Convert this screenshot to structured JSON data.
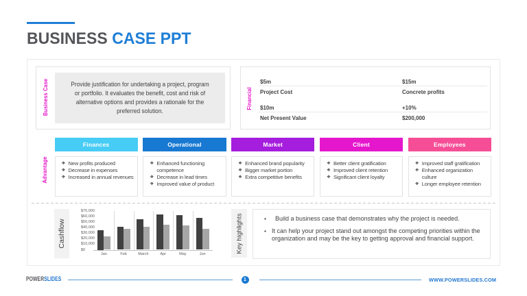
{
  "title": {
    "part1": "BUSINESS ",
    "part2": "CASE PPT"
  },
  "slide": {
    "business_case": {
      "label": "Business Case",
      "text": "Provide justification for undertaking a project, program\nor portfolio. It evaluates the benefit, cost and risk of\nalternative options and provides a rationale for the\npreferred solution."
    },
    "financial": {
      "label": "Financial",
      "rows": [
        {
          "left": "$5m",
          "right": "$15m"
        },
        {
          "left": "Project Cost",
          "right": "Concrete profits"
        },
        {
          "left": "$10m",
          "right": "+10%"
        },
        {
          "left": "Net Present Value",
          "right": "$200,000"
        }
      ]
    },
    "advantage": {
      "label": "Advantage",
      "bullet_icon": "❖",
      "columns": [
        {
          "title": "Finances",
          "color": "#47ccf5",
          "items": [
            "New profits produced",
            "Decrease in expenses",
            "Increased in annual revenues"
          ]
        },
        {
          "title": "Operational",
          "color": "#1879d2",
          "items": [
            "Enhanced functioning\ncompetence",
            "Decrease in lead times",
            "Improved value of product"
          ]
        },
        {
          "title": "Market",
          "color": "#a51ddd",
          "items": [
            "Enhanced brand popularity",
            "Bigger market portion",
            "Extra competitive benefits"
          ]
        },
        {
          "title": "Client",
          "color": "#e517cd",
          "items": [
            "Better client gratification",
            "Improved client retention",
            "Significant client loyalty"
          ]
        },
        {
          "title": "Employees",
          "color": "#f64e96",
          "items": [
            "Improved staff gratification",
            "Enhanced organization\nculture",
            "Longer employee retention"
          ]
        }
      ]
    },
    "cashflow": {
      "label": "Cashflow"
    },
    "key_highlights": {
      "label": "Key highlights",
      "bullet_icon": "•",
      "bullets": [
        "Build a business case that demonstrates why the project is needed.",
        "It can help your project stand out amongst the competing priorities within the\norganization and may be the key to getting approval and financial support."
      ]
    }
  },
  "chart_data": {
    "type": "bar",
    "title": "Cashflow",
    "categories": [
      "Jan",
      "Feb",
      "March",
      "Apr",
      "May",
      "Jun"
    ],
    "series": [
      {
        "name": "series-1",
        "color": "#404040",
        "values": [
          35000,
          42000,
          55000,
          64000,
          62000,
          57000
        ]
      },
      {
        "name": "series-2",
        "color": "#a6a6a6",
        "values": [
          24000,
          38000,
          42000,
          45000,
          44000,
          38000
        ]
      }
    ],
    "ylim": [
      0,
      70000
    ],
    "ytick_labels": [
      "$70,000",
      "$60,000",
      "$50,000",
      "$40,000",
      "$30,000",
      "$20,000",
      "$10,000",
      "$0"
    ],
    "grid": "vertical-separators",
    "legend": "none"
  },
  "footer": {
    "brand_part1": "POWER",
    "brand_part2": "SLIDES",
    "page_number": "1",
    "website": "WWW.POWERSLIDES.COM"
  }
}
